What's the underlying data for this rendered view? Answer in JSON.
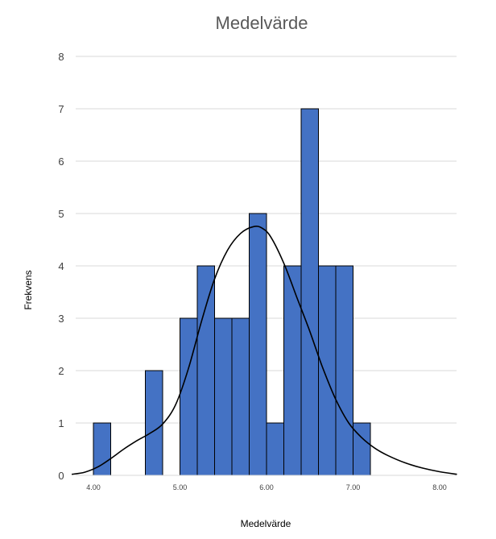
{
  "chart_data": {
    "type": "bar",
    "title": "Medelvärde",
    "xlabel": "Medelvärde",
    "ylabel": "Frekvens",
    "bin_width": 0.2,
    "bins": [
      {
        "start": 4.0,
        "end": 4.2,
        "count": 1
      },
      {
        "start": 4.6,
        "end": 4.8,
        "count": 2
      },
      {
        "start": 5.0,
        "end": 5.2,
        "count": 3
      },
      {
        "start": 5.2,
        "end": 5.4,
        "count": 4
      },
      {
        "start": 5.4,
        "end": 5.6,
        "count": 3
      },
      {
        "start": 5.6,
        "end": 5.8,
        "count": 3
      },
      {
        "start": 5.8,
        "end": 6.0,
        "count": 5
      },
      {
        "start": 6.0,
        "end": 6.2,
        "count": 1
      },
      {
        "start": 6.2,
        "end": 6.4,
        "count": 4
      },
      {
        "start": 6.4,
        "end": 6.6,
        "count": 7
      },
      {
        "start": 6.6,
        "end": 6.8,
        "count": 4
      },
      {
        "start": 6.8,
        "end": 7.0,
        "count": 4
      },
      {
        "start": 7.0,
        "end": 7.2,
        "count": 1
      }
    ],
    "curve": {
      "type": "normal",
      "x": [
        3.75,
        3.9,
        4.05,
        4.2,
        4.35,
        4.5,
        4.65,
        4.8,
        4.95,
        5.1,
        5.25,
        5.4,
        5.55,
        5.7,
        5.85,
        5.95,
        6.05,
        6.2,
        6.35,
        6.5,
        6.65,
        6.8,
        6.95,
        7.1,
        7.25,
        7.4,
        7.6,
        7.8,
        8.0,
        8.2
      ],
      "y": [
        0.02,
        0.06,
        0.16,
        0.32,
        0.5,
        0.66,
        0.8,
        0.98,
        1.35,
        2.05,
        2.95,
        3.75,
        4.3,
        4.62,
        4.75,
        4.72,
        4.55,
        4.05,
        3.4,
        2.75,
        2.05,
        1.45,
        1.0,
        0.72,
        0.52,
        0.38,
        0.24,
        0.14,
        0.07,
        0.02
      ]
    },
    "xlim": [
      3.75,
      8.2
    ],
    "ylim": [
      0,
      8
    ],
    "xticks": [
      "4.00",
      "5.00",
      "6.00",
      "7.00",
      "8.00"
    ],
    "xtick_values": [
      4,
      5,
      6,
      7,
      8
    ],
    "yticks": [
      "0",
      "1",
      "2",
      "3",
      "4",
      "5",
      "6",
      "7",
      "8"
    ],
    "ytick_values": [
      0,
      1,
      2,
      3,
      4,
      5,
      6,
      7,
      8
    ],
    "grid": true,
    "bar_color": "#4472C4",
    "bar_edge_color": "#000000",
    "curve_color": "#000000"
  }
}
